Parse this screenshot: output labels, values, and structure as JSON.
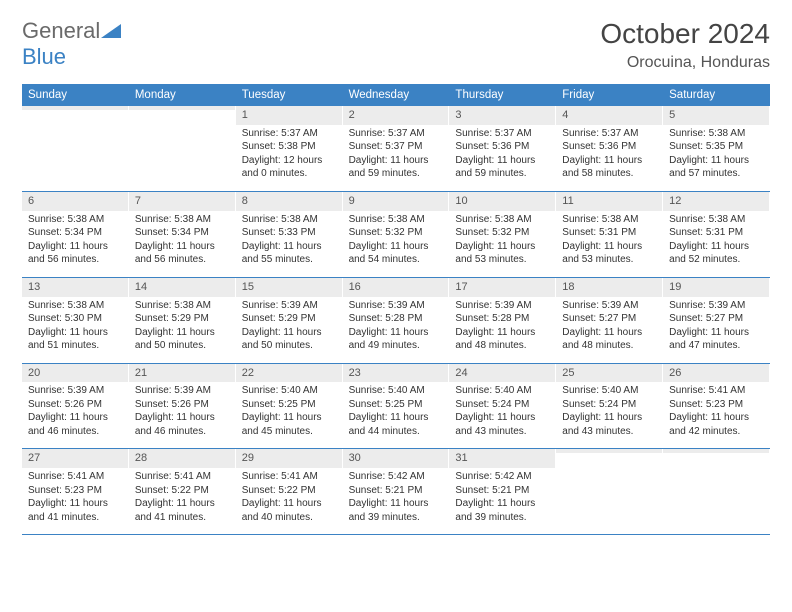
{
  "logo": {
    "text1": "General",
    "text2": "Blue"
  },
  "title": "October 2024",
  "location": "Orocuina, Honduras",
  "colors": {
    "header_bg": "#3b82c4",
    "header_text": "#ffffff",
    "daynum_bg": "#ececec",
    "border": "#3b82c4",
    "body_text": "#333333",
    "logo_gray": "#6a6a6a",
    "logo_blue": "#3b82c4",
    "page_bg": "#ffffff"
  },
  "typography": {
    "title_fontsize": 28,
    "location_fontsize": 16,
    "weekday_fontsize": 11.5,
    "cell_fontsize": 10
  },
  "layout": {
    "columns": 7,
    "rows": 5
  },
  "weekdays": [
    "Sunday",
    "Monday",
    "Tuesday",
    "Wednesday",
    "Thursday",
    "Friday",
    "Saturday"
  ],
  "weeks": [
    [
      {
        "num": "",
        "lines": [
          "",
          "",
          "",
          ""
        ]
      },
      {
        "num": "",
        "lines": [
          "",
          "",
          "",
          ""
        ]
      },
      {
        "num": "1",
        "lines": [
          "Sunrise: 5:37 AM",
          "Sunset: 5:38 PM",
          "Daylight: 12 hours",
          "and 0 minutes."
        ]
      },
      {
        "num": "2",
        "lines": [
          "Sunrise: 5:37 AM",
          "Sunset: 5:37 PM",
          "Daylight: 11 hours",
          "and 59 minutes."
        ]
      },
      {
        "num": "3",
        "lines": [
          "Sunrise: 5:37 AM",
          "Sunset: 5:36 PM",
          "Daylight: 11 hours",
          "and 59 minutes."
        ]
      },
      {
        "num": "4",
        "lines": [
          "Sunrise: 5:37 AM",
          "Sunset: 5:36 PM",
          "Daylight: 11 hours",
          "and 58 minutes."
        ]
      },
      {
        "num": "5",
        "lines": [
          "Sunrise: 5:38 AM",
          "Sunset: 5:35 PM",
          "Daylight: 11 hours",
          "and 57 minutes."
        ]
      }
    ],
    [
      {
        "num": "6",
        "lines": [
          "Sunrise: 5:38 AM",
          "Sunset: 5:34 PM",
          "Daylight: 11 hours",
          "and 56 minutes."
        ]
      },
      {
        "num": "7",
        "lines": [
          "Sunrise: 5:38 AM",
          "Sunset: 5:34 PM",
          "Daylight: 11 hours",
          "and 56 minutes."
        ]
      },
      {
        "num": "8",
        "lines": [
          "Sunrise: 5:38 AM",
          "Sunset: 5:33 PM",
          "Daylight: 11 hours",
          "and 55 minutes."
        ]
      },
      {
        "num": "9",
        "lines": [
          "Sunrise: 5:38 AM",
          "Sunset: 5:32 PM",
          "Daylight: 11 hours",
          "and 54 minutes."
        ]
      },
      {
        "num": "10",
        "lines": [
          "Sunrise: 5:38 AM",
          "Sunset: 5:32 PM",
          "Daylight: 11 hours",
          "and 53 minutes."
        ]
      },
      {
        "num": "11",
        "lines": [
          "Sunrise: 5:38 AM",
          "Sunset: 5:31 PM",
          "Daylight: 11 hours",
          "and 53 minutes."
        ]
      },
      {
        "num": "12",
        "lines": [
          "Sunrise: 5:38 AM",
          "Sunset: 5:31 PM",
          "Daylight: 11 hours",
          "and 52 minutes."
        ]
      }
    ],
    [
      {
        "num": "13",
        "lines": [
          "Sunrise: 5:38 AM",
          "Sunset: 5:30 PM",
          "Daylight: 11 hours",
          "and 51 minutes."
        ]
      },
      {
        "num": "14",
        "lines": [
          "Sunrise: 5:38 AM",
          "Sunset: 5:29 PM",
          "Daylight: 11 hours",
          "and 50 minutes."
        ]
      },
      {
        "num": "15",
        "lines": [
          "Sunrise: 5:39 AM",
          "Sunset: 5:29 PM",
          "Daylight: 11 hours",
          "and 50 minutes."
        ]
      },
      {
        "num": "16",
        "lines": [
          "Sunrise: 5:39 AM",
          "Sunset: 5:28 PM",
          "Daylight: 11 hours",
          "and 49 minutes."
        ]
      },
      {
        "num": "17",
        "lines": [
          "Sunrise: 5:39 AM",
          "Sunset: 5:28 PM",
          "Daylight: 11 hours",
          "and 48 minutes."
        ]
      },
      {
        "num": "18",
        "lines": [
          "Sunrise: 5:39 AM",
          "Sunset: 5:27 PM",
          "Daylight: 11 hours",
          "and 48 minutes."
        ]
      },
      {
        "num": "19",
        "lines": [
          "Sunrise: 5:39 AM",
          "Sunset: 5:27 PM",
          "Daylight: 11 hours",
          "and 47 minutes."
        ]
      }
    ],
    [
      {
        "num": "20",
        "lines": [
          "Sunrise: 5:39 AM",
          "Sunset: 5:26 PM",
          "Daylight: 11 hours",
          "and 46 minutes."
        ]
      },
      {
        "num": "21",
        "lines": [
          "Sunrise: 5:39 AM",
          "Sunset: 5:26 PM",
          "Daylight: 11 hours",
          "and 46 minutes."
        ]
      },
      {
        "num": "22",
        "lines": [
          "Sunrise: 5:40 AM",
          "Sunset: 5:25 PM",
          "Daylight: 11 hours",
          "and 45 minutes."
        ]
      },
      {
        "num": "23",
        "lines": [
          "Sunrise: 5:40 AM",
          "Sunset: 5:25 PM",
          "Daylight: 11 hours",
          "and 44 minutes."
        ]
      },
      {
        "num": "24",
        "lines": [
          "Sunrise: 5:40 AM",
          "Sunset: 5:24 PM",
          "Daylight: 11 hours",
          "and 43 minutes."
        ]
      },
      {
        "num": "25",
        "lines": [
          "Sunrise: 5:40 AM",
          "Sunset: 5:24 PM",
          "Daylight: 11 hours",
          "and 43 minutes."
        ]
      },
      {
        "num": "26",
        "lines": [
          "Sunrise: 5:41 AM",
          "Sunset: 5:23 PM",
          "Daylight: 11 hours",
          "and 42 minutes."
        ]
      }
    ],
    [
      {
        "num": "27",
        "lines": [
          "Sunrise: 5:41 AM",
          "Sunset: 5:23 PM",
          "Daylight: 11 hours",
          "and 41 minutes."
        ]
      },
      {
        "num": "28",
        "lines": [
          "Sunrise: 5:41 AM",
          "Sunset: 5:22 PM",
          "Daylight: 11 hours",
          "and 41 minutes."
        ]
      },
      {
        "num": "29",
        "lines": [
          "Sunrise: 5:41 AM",
          "Sunset: 5:22 PM",
          "Daylight: 11 hours",
          "and 40 minutes."
        ]
      },
      {
        "num": "30",
        "lines": [
          "Sunrise: 5:42 AM",
          "Sunset: 5:21 PM",
          "Daylight: 11 hours",
          "and 39 minutes."
        ]
      },
      {
        "num": "31",
        "lines": [
          "Sunrise: 5:42 AM",
          "Sunset: 5:21 PM",
          "Daylight: 11 hours",
          "and 39 minutes."
        ]
      },
      {
        "num": "",
        "lines": [
          "",
          "",
          "",
          ""
        ]
      },
      {
        "num": "",
        "lines": [
          "",
          "",
          "",
          ""
        ]
      }
    ]
  ]
}
